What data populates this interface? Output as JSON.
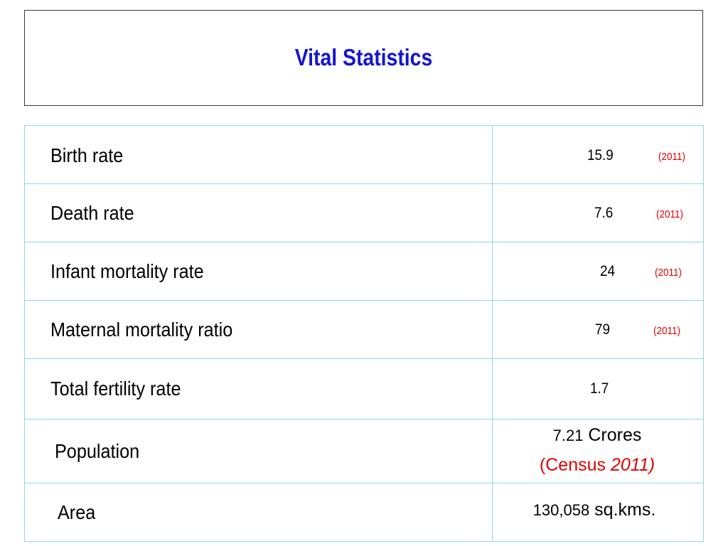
{
  "title": "Vital Statistics",
  "rows": [
    {
      "label": "Birth rate",
      "value": "15.9",
      "year": "(2011)"
    },
    {
      "label": "Death rate",
      "value": "7.6",
      "year": "(2011)"
    },
    {
      "label": "Infant mortality rate",
      "value": "24",
      "year": "(2011)"
    },
    {
      "label": "Maternal mortality ratio",
      "value": "79",
      "year": "(2011)"
    },
    {
      "label": "Total fertility rate",
      "value": "1.7"
    },
    {
      "label": "Population",
      "value_num": "7.21",
      "value_unit": " Crores",
      "note_prefix": "(Census ",
      "note_year": "2011)"
    },
    {
      "label": "Area",
      "value_num": "130,058",
      "value_unit": " sq.kms."
    }
  ]
}
